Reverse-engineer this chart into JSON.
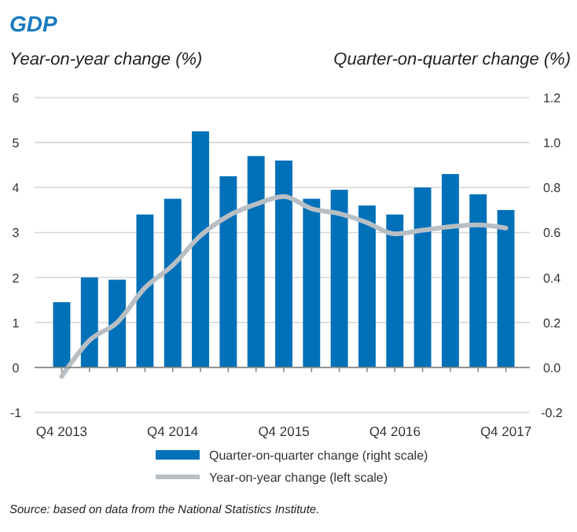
{
  "chart_data": {
    "type": "bar",
    "title": "GDP",
    "ylabel": "Year-on-year change (%)",
    "y2label": "Quarter-on-quarter change (%)",
    "categories": [
      "Q4 2013",
      null,
      null,
      null,
      "Q4 2014",
      null,
      null,
      null,
      "Q4 2015",
      null,
      null,
      null,
      "Q4 2016",
      null,
      null,
      null,
      "Q4 2017"
    ],
    "series": [
      {
        "name": "Quarter-on-quarter change (right scale)",
        "axis": "y2",
        "color": "#0070b8",
        "values": [
          0.29,
          0.4,
          0.39,
          0.68,
          0.75,
          1.05,
          0.85,
          0.94,
          0.92,
          0.75,
          0.79,
          0.72,
          0.68,
          0.8,
          0.86,
          0.77,
          0.7
        ]
      },
      {
        "name": "Year-on-year change (left scale)",
        "type": "line",
        "color": "#b8bfc4",
        "values": [
          -0.2,
          0.6,
          1.0,
          1.77,
          2.27,
          2.93,
          3.37,
          3.63,
          3.8,
          3.53,
          3.42,
          3.22,
          2.97,
          3.05,
          3.13,
          3.17,
          3.1
        ]
      }
    ],
    "ylim": [
      -1,
      6
    ],
    "yticks": [
      -1,
      0,
      1,
      2,
      3,
      4,
      5,
      6
    ],
    "y2lim": [
      -0.2,
      1.2
    ],
    "y2ticks": [
      {
        "value": -0.2,
        "label": "-0.2"
      },
      {
        "value": 0,
        "label": "0.0"
      },
      {
        "value": 0.2,
        "label": "0.2"
      },
      {
        "value": 0.4,
        "label": "0.4"
      },
      {
        "value": 0.6,
        "label": "0.6"
      },
      {
        "value": 0.8,
        "label": "0.8"
      },
      {
        "value": 1,
        "label": "1.0"
      },
      {
        "value": 1.2,
        "label": "1.2"
      }
    ],
    "grid": "y",
    "legend": "bottom",
    "annotations": [
      "Source: based on data from the National Statistics Institute."
    ]
  }
}
